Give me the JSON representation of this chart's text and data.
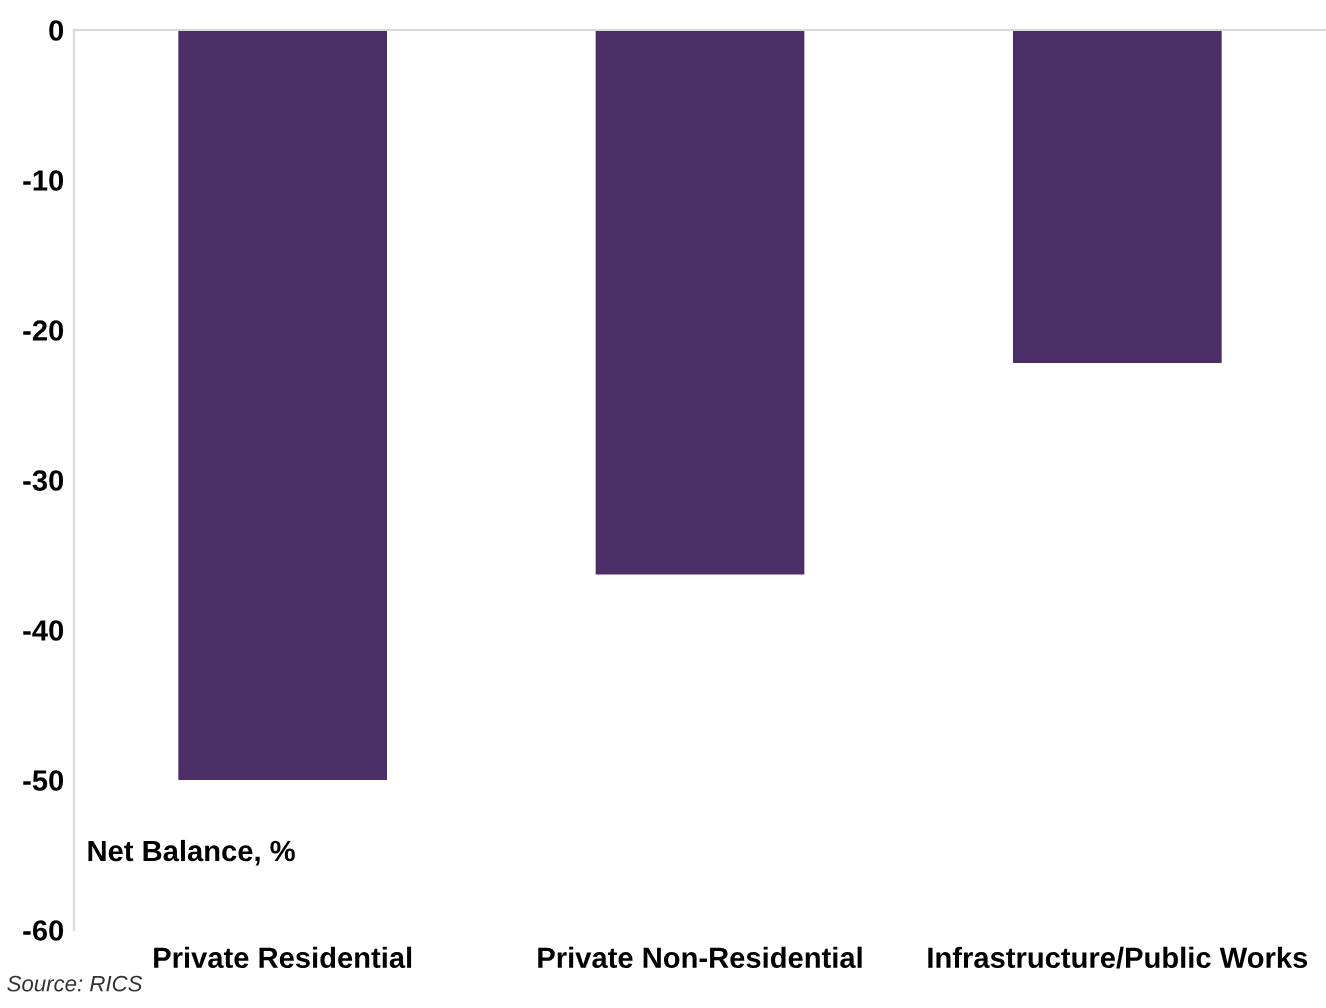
{
  "chart_data": {
    "type": "bar",
    "ylabel": "Net Balance, %",
    "categories": [
      "Private Residential",
      "Private Non-Residential",
      "Infrastructure/Public Works"
    ],
    "values": [
      -50,
      -36.3,
      -22.2
    ],
    "color": "#4b2e66",
    "ylim": [
      -60,
      0
    ],
    "yticks": [
      -60,
      -50,
      -40,
      -30,
      -20,
      -10,
      0
    ],
    "grid": false,
    "annotations": [
      "Source: RICS"
    ]
  }
}
